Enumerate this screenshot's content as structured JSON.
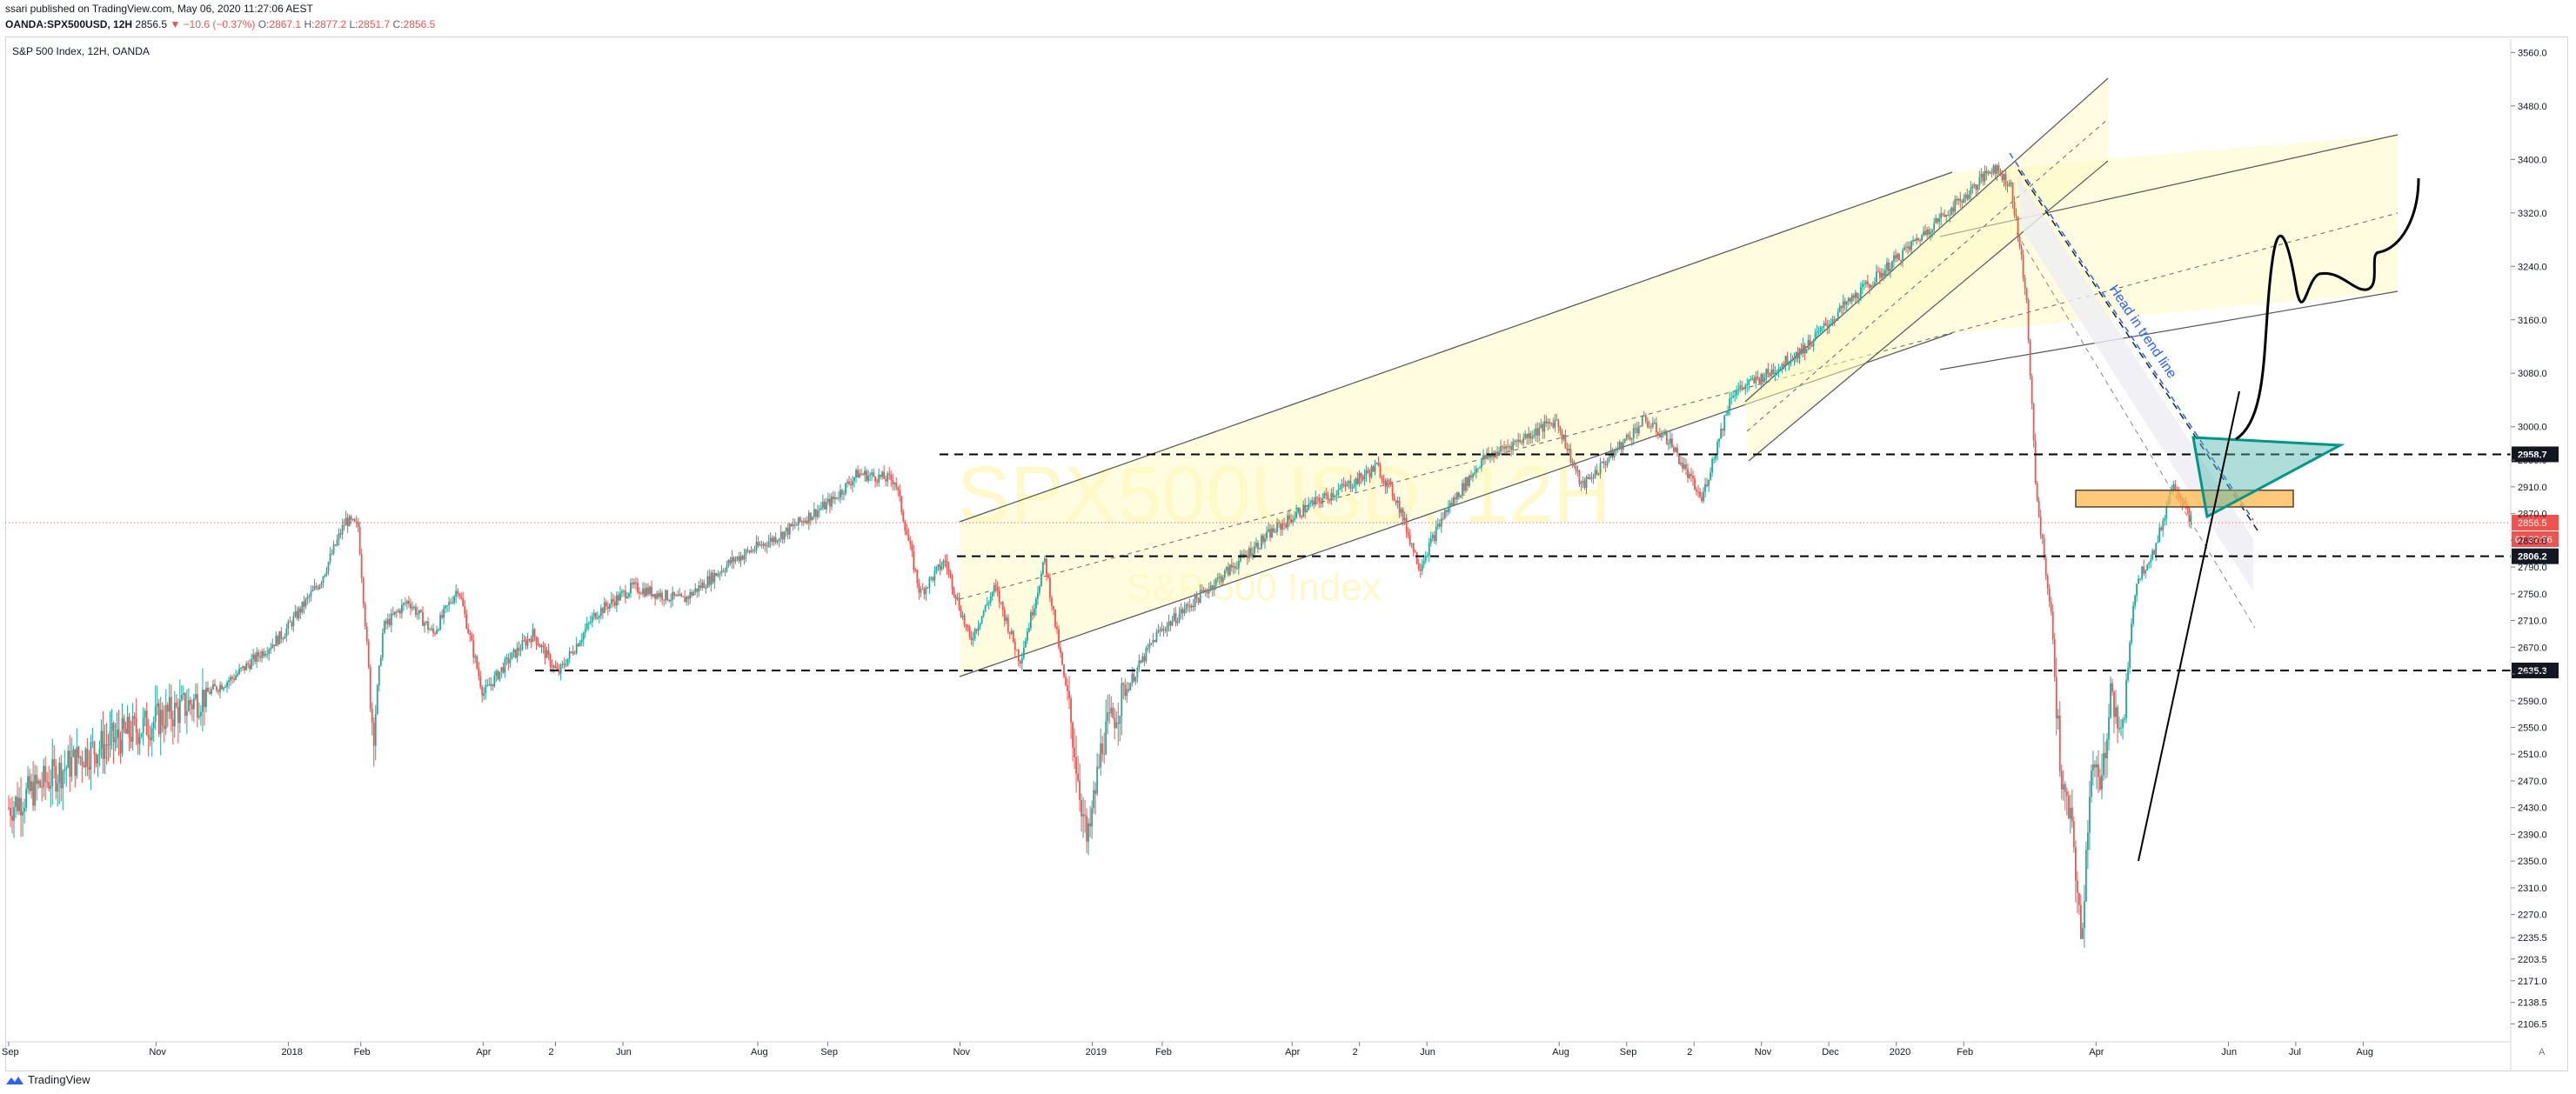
{
  "header": {
    "publish_line": "ssari published on TradingView.com, May 06, 2020 11:27:06 AEST",
    "symbol": "OANDA:SPX500USD, 12H",
    "last": "2856.5",
    "change": "▼ −10.6 (−0.37%)",
    "o_label": "O:",
    "o_val": "2867.1",
    "h_label": "H:",
    "h_val": "2877.2",
    "l_label": "L:",
    "l_val": "2851.7",
    "c_label": "C:",
    "c_val": "2856.5"
  },
  "pane_title": "S&P 500 Index, 12H, OANDA",
  "watermark": {
    "symbol": "SPX500USD, 12H",
    "name": "S&P 500 Index"
  },
  "footer": {
    "brand": "TradingView",
    "logo_icon": "tradingview-logo-icon"
  },
  "colors": {
    "up": "#26a69a",
    "down": "#ef5350",
    "channel": "#fff9c4",
    "zone": "#ffb74d",
    "triangle": "#4db6ac",
    "trend": "#2962ff"
  },
  "chart_data": {
    "type": "candlestick",
    "ylim": [
      2090,
      3580
    ],
    "y_ticks": [
      2106.5,
      2138.5,
      2171.0,
      2203.5,
      2235.5,
      2270.0,
      2310.0,
      2350.0,
      2390.0,
      2430.0,
      2470.0,
      2510.0,
      2550.0,
      2590.0,
      2630.0,
      2670.0,
      2710.0,
      2750.0,
      2790.0,
      2830.0,
      2870.0,
      2910.0,
      2950.0,
      3000.0,
      3080.0,
      3160.0,
      3240.0,
      3320.0,
      3400.0,
      3480.0,
      3560.0
    ],
    "x_ticks": [
      {
        "label": "Sep",
        "t": 0.0
      },
      {
        "label": "Nov",
        "t": 0.059
      },
      {
        "label": "2018",
        "t": 0.112
      },
      {
        "label": "Feb",
        "t": 0.141
      },
      {
        "label": "Apr",
        "t": 0.19
      },
      {
        "label": "2",
        "t": 0.219
      },
      {
        "label": "Jun",
        "t": 0.246
      },
      {
        "label": "Aug",
        "t": 0.3
      },
      {
        "label": "Sep",
        "t": 0.328
      },
      {
        "label": "Nov",
        "t": 0.381
      },
      {
        "label": "2019",
        "t": 0.434
      },
      {
        "label": "Feb",
        "t": 0.462
      },
      {
        "label": "Apr",
        "t": 0.514
      },
      {
        "label": "2",
        "t": 0.541
      },
      {
        "label": "Jun",
        "t": 0.568
      },
      {
        "label": "Aug",
        "t": 0.621
      },
      {
        "label": "Sep",
        "t": 0.648
      },
      {
        "label": "2",
        "t": 0.675
      },
      {
        "label": "Nov",
        "t": 0.702
      },
      {
        "label": "Dec",
        "t": 0.729
      },
      {
        "label": "2020",
        "t": 0.756
      },
      {
        "label": "Feb",
        "t": 0.783
      },
      {
        "label": "Apr",
        "t": 0.836
      },
      {
        "label": "Jun",
        "t": 0.889
      },
      {
        "label": "Jul",
        "t": 0.916
      },
      {
        "label": "Aug",
        "t": 0.943
      }
    ],
    "path": [
      [
        0.0,
        2430
      ],
      [
        0.015,
        2470
      ],
      [
        0.03,
        2510
      ],
      [
        0.05,
        2545
      ],
      [
        0.07,
        2580
      ],
      [
        0.09,
        2625
      ],
      [
        0.11,
        2690
      ],
      [
        0.125,
        2770
      ],
      [
        0.135,
        2860
      ],
      [
        0.14,
        2850
      ],
      [
        0.146,
        2540
      ],
      [
        0.15,
        2700
      ],
      [
        0.16,
        2740
      ],
      [
        0.17,
        2690
      ],
      [
        0.18,
        2760
      ],
      [
        0.19,
        2600
      ],
      [
        0.2,
        2650
      ],
      [
        0.21,
        2690
      ],
      [
        0.22,
        2630
      ],
      [
        0.235,
        2720
      ],
      [
        0.25,
        2760
      ],
      [
        0.27,
        2740
      ],
      [
        0.29,
        2800
      ],
      [
        0.31,
        2840
      ],
      [
        0.33,
        2890
      ],
      [
        0.34,
        2930
      ],
      [
        0.355,
        2920
      ],
      [
        0.365,
        2750
      ],
      [
        0.375,
        2800
      ],
      [
        0.385,
        2680
      ],
      [
        0.395,
        2760
      ],
      [
        0.405,
        2650
      ],
      [
        0.415,
        2800
      ],
      [
        0.425,
        2570
      ],
      [
        0.432,
        2370
      ],
      [
        0.438,
        2530
      ],
      [
        0.448,
        2610
      ],
      [
        0.46,
        2690
      ],
      [
        0.475,
        2740
      ],
      [
        0.49,
        2790
      ],
      [
        0.505,
        2840
      ],
      [
        0.52,
        2880
      ],
      [
        0.54,
        2920
      ],
      [
        0.548,
        2940
      ],
      [
        0.556,
        2890
      ],
      [
        0.565,
        2790
      ],
      [
        0.575,
        2870
      ],
      [
        0.59,
        2950
      ],
      [
        0.61,
        2990
      ],
      [
        0.62,
        3010
      ],
      [
        0.63,
        2910
      ],
      [
        0.64,
        2950
      ],
      [
        0.655,
        3010
      ],
      [
        0.665,
        2980
      ],
      [
        0.678,
        2890
      ],
      [
        0.69,
        3050
      ],
      [
        0.705,
        3080
      ],
      [
        0.72,
        3120
      ],
      [
        0.735,
        3180
      ],
      [
        0.75,
        3230
      ],
      [
        0.77,
        3300
      ],
      [
        0.785,
        3350
      ],
      [
        0.795,
        3390
      ],
      [
        0.802,
        3360
      ],
      [
        0.808,
        3200
      ],
      [
        0.812,
        2900
      ],
      [
        0.818,
        2720
      ],
      [
        0.822,
        2470
      ],
      [
        0.827,
        2380
      ],
      [
        0.83,
        2220
      ],
      [
        0.834,
        2500
      ],
      [
        0.838,
        2450
      ],
      [
        0.842,
        2620
      ],
      [
        0.846,
        2530
      ],
      [
        0.852,
        2770
      ],
      [
        0.86,
        2820
      ],
      [
        0.867,
        2920
      ],
      [
        0.874,
        2860
      ]
    ],
    "levels": [
      2958.7,
      2806.2,
      2635.3
    ],
    "last_price": 2856.5,
    "countdown": "07:32:56",
    "annotations": [
      "Head in trend line"
    ]
  }
}
